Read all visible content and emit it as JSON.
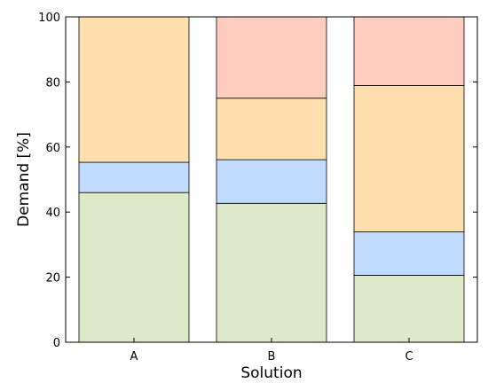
{
  "chart_data": {
    "type": "bar",
    "stacked": true,
    "categories": [
      "A",
      "B",
      "C"
    ],
    "series": [
      {
        "color": "#dde9c8",
        "values": [
          46,
          42.7,
          20.6
        ]
      },
      {
        "color": "#bfdcff",
        "values": [
          9.3,
          13.4,
          13.3
        ]
      },
      {
        "color": "#ffdfae",
        "values": [
          44.7,
          18.9,
          45.0
        ]
      },
      {
        "color": "#ffcdbf",
        "values": [
          0,
          25.0,
          21.1
        ]
      }
    ],
    "xlabel": "Solution",
    "ylabel": "Demand [%]",
    "ylim": [
      0,
      100
    ],
    "yticks": [
      "0",
      "20",
      "40",
      "60",
      "80",
      "100"
    ],
    "grid": false,
    "legend": "none"
  }
}
